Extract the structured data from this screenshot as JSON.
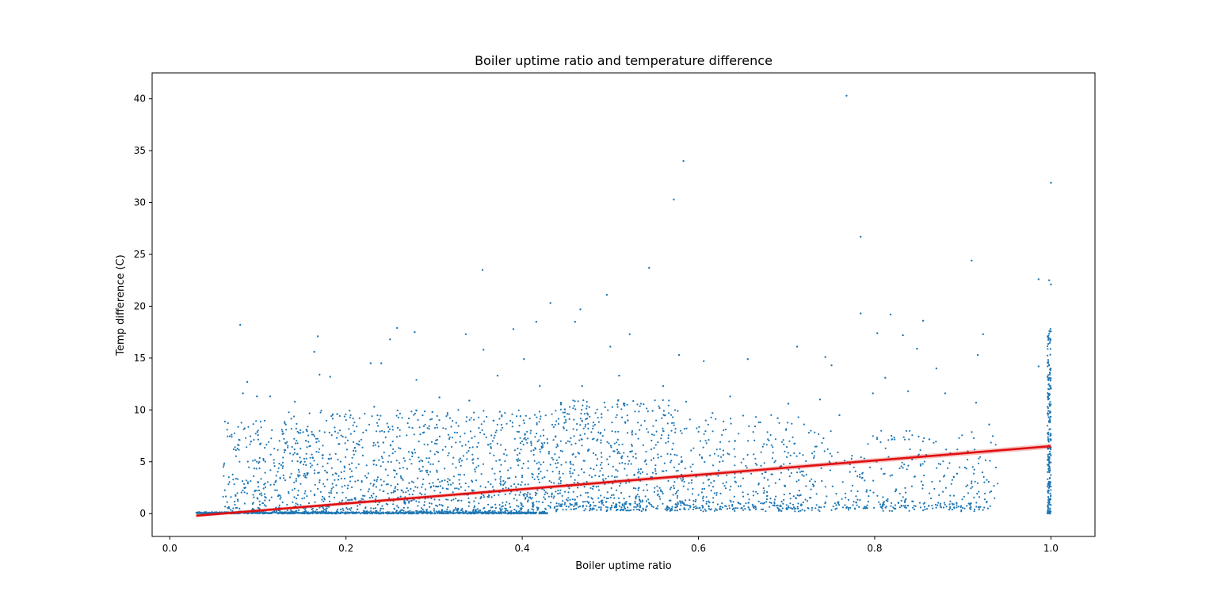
{
  "chart_data": {
    "type": "scatter",
    "title": "Boiler uptime ratio and temperature difference",
    "xlabel": "Boiler uptime ratio",
    "ylabel": "Temp difference (C)",
    "xlim": [
      -0.02,
      1.05
    ],
    "ylim": [
      -2.2,
      42.5
    ],
    "x_ticks": [
      0.0,
      0.2,
      0.4,
      0.6,
      0.8,
      1.0
    ],
    "x_tick_labels": [
      "0.0",
      "0.2",
      "0.4",
      "0.6",
      "0.8",
      "1.0"
    ],
    "y_ticks": [
      0,
      5,
      10,
      15,
      20,
      25,
      30,
      35,
      40
    ],
    "y_tick_labels": [
      "0",
      "5",
      "10",
      "15",
      "20",
      "25",
      "30",
      "35",
      "40"
    ],
    "grid": false,
    "colors": {
      "points": "#1f77b4",
      "regression": "#e01010",
      "axes": "#000000"
    },
    "regression_line": {
      "x": [
        0.03,
        1.0
      ],
      "y": [
        -0.2,
        6.5
      ]
    },
    "points": [
      [
        0.768,
        40.3
      ],
      [
        0.583,
        34.0
      ],
      [
        0.572,
        30.3
      ],
      [
        1.0,
        31.9
      ],
      [
        0.784,
        26.7
      ],
      [
        0.91,
        24.4
      ],
      [
        0.355,
        23.5
      ],
      [
        0.544,
        23.7
      ],
      [
        0.986,
        22.6
      ],
      [
        0.998,
        22.5
      ],
      [
        1.0,
        22.1
      ],
      [
        0.432,
        20.3
      ],
      [
        0.496,
        21.1
      ],
      [
        0.466,
        19.7
      ],
      [
        0.784,
        19.3
      ],
      [
        0.818,
        19.2
      ],
      [
        0.08,
        18.2
      ],
      [
        0.416,
        18.5
      ],
      [
        0.46,
        18.5
      ],
      [
        0.855,
        18.6
      ],
      [
        0.168,
        17.1
      ],
      [
        0.258,
        17.9
      ],
      [
        0.278,
        17.5
      ],
      [
        0.336,
        17.3
      ],
      [
        0.39,
        17.8
      ],
      [
        0.522,
        17.3
      ],
      [
        0.803,
        17.4
      ],
      [
        0.832,
        17.2
      ],
      [
        0.923,
        17.3
      ],
      [
        0.164,
        15.6
      ],
      [
        0.356,
        15.8
      ],
      [
        0.25,
        16.8
      ],
      [
        0.5,
        16.1
      ],
      [
        0.712,
        16.1
      ],
      [
        0.578,
        15.3
      ],
      [
        0.606,
        14.7
      ],
      [
        0.656,
        14.9
      ],
      [
        0.744,
        15.1
      ],
      [
        0.848,
        15.9
      ],
      [
        0.917,
        15.3
      ],
      [
        0.228,
        14.5
      ],
      [
        0.24,
        14.5
      ],
      [
        0.402,
        14.9
      ],
      [
        0.986,
        14.2
      ],
      [
        0.751,
        14.3
      ],
      [
        0.17,
        13.4
      ],
      [
        0.182,
        13.2
      ],
      [
        0.372,
        13.3
      ],
      [
        0.51,
        13.3
      ],
      [
        0.812,
        13.1
      ],
      [
        0.87,
        14.0
      ],
      [
        0.088,
        12.7
      ],
      [
        0.28,
        12.9
      ],
      [
        0.42,
        12.3
      ],
      [
        0.468,
        12.3
      ],
      [
        0.56,
        12.3
      ],
      [
        0.88,
        11.6
      ],
      [
        0.083,
        11.6
      ],
      [
        0.099,
        11.3
      ],
      [
        0.114,
        11.3
      ],
      [
        0.142,
        10.8
      ],
      [
        0.232,
        10.3
      ],
      [
        0.306,
        11.2
      ],
      [
        0.34,
        10.9
      ],
      [
        0.444,
        10.7
      ],
      [
        0.586,
        10.8
      ],
      [
        0.636,
        11.3
      ],
      [
        0.702,
        10.6
      ],
      [
        0.738,
        11.0
      ],
      [
        0.798,
        11.6
      ],
      [
        0.838,
        11.8
      ],
      [
        0.915,
        10.7
      ],
      [
        0.19,
        9.6
      ],
      [
        0.298,
        9.8
      ],
      [
        0.398,
        9.4
      ],
      [
        0.49,
        9.6
      ],
      [
        0.548,
        9.9
      ],
      [
        0.616,
        9.7
      ],
      [
        0.69,
        9.2
      ],
      [
        0.76,
        9.5
      ],
      [
        0.93,
        8.6
      ]
    ],
    "clusters": [
      {
        "x": [
          0.06,
          0.12
        ],
        "y": [
          0.2,
          9.0
        ],
        "count": 170
      },
      {
        "x": [
          0.12,
          0.43
        ],
        "y": [
          0.2,
          10.0
        ],
        "count": 1150
      },
      {
        "x": [
          0.43,
          0.58
        ],
        "y": [
          0.3,
          11.0
        ],
        "count": 620
      },
      {
        "x": [
          0.58,
          0.72
        ],
        "y": [
          0.4,
          9.5
        ],
        "count": 320
      },
      {
        "x": [
          0.72,
          0.94
        ],
        "y": [
          0.5,
          8.0
        ],
        "count": 300
      },
      {
        "x": [
          0.03,
          0.43
        ],
        "y": [
          0.0,
          0.15
        ],
        "count": 900
      },
      {
        "x": [
          0.43,
          0.93
        ],
        "y": [
          0.2,
          1.2
        ],
        "count": 230
      },
      {
        "x": [
          0.996,
          1.0
        ],
        "y": [
          0.0,
          18.0
        ],
        "count": 240
      }
    ]
  }
}
